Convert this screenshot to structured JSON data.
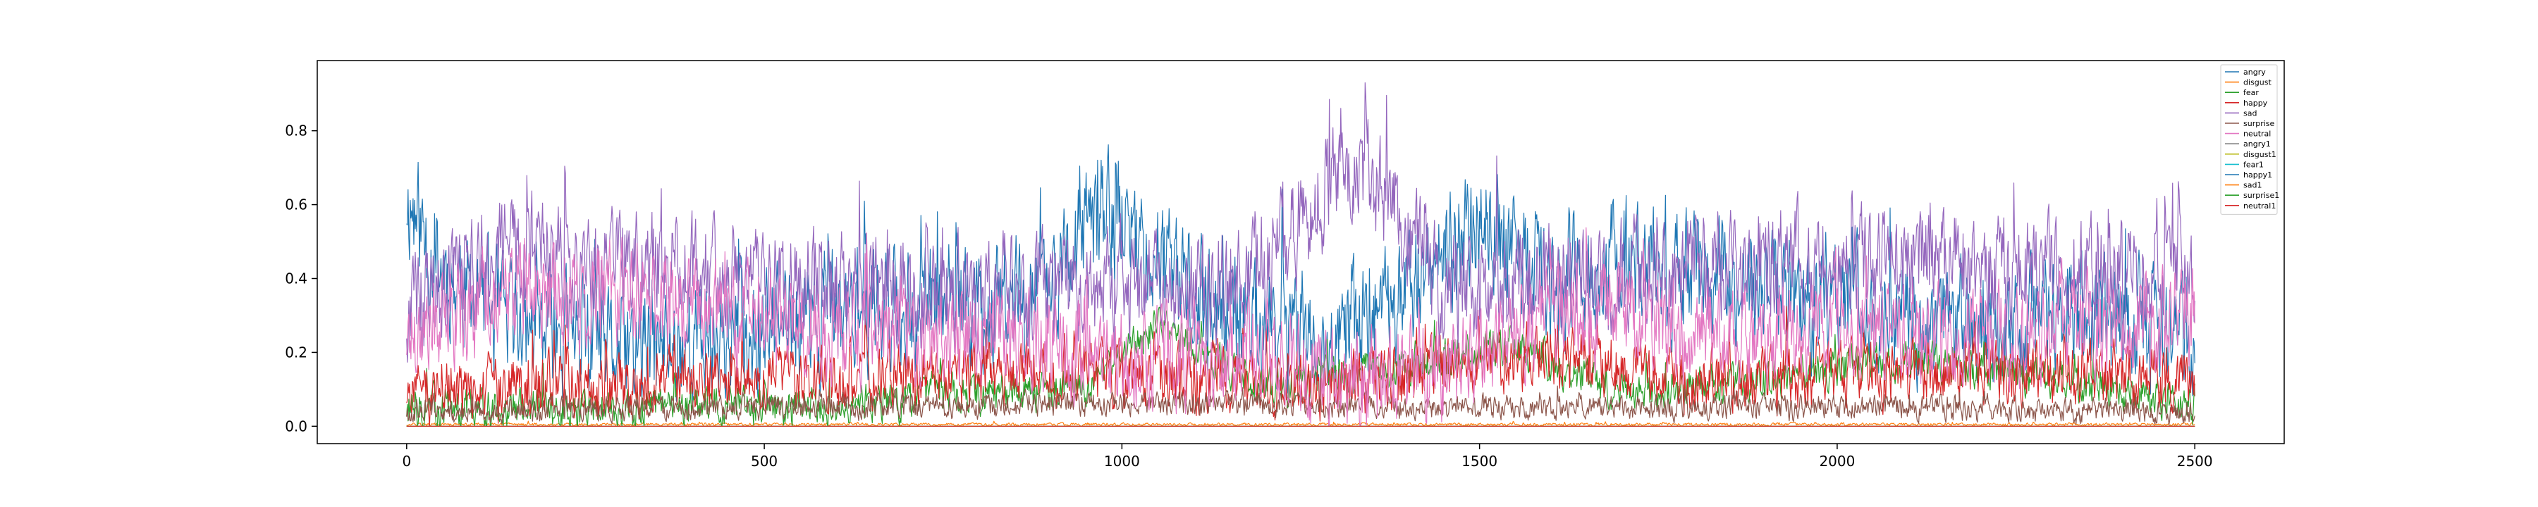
{
  "chart_data": {
    "type": "line",
    "title": "",
    "xlabel": "",
    "ylabel": "",
    "xlim": [
      -125,
      2625
    ],
    "ylim": [
      -0.047,
      0.99
    ],
    "xticks": [
      0,
      500,
      1000,
      1500,
      2000,
      2500
    ],
    "yticks": [
      0.0,
      0.2,
      0.4,
      0.6,
      0.8
    ],
    "xtick_labels": [
      "0",
      "500",
      "1000",
      "1500",
      "2000",
      "2500"
    ],
    "ytick_labels": [
      "0.0",
      "0.2",
      "0.4",
      "0.6",
      "0.8"
    ],
    "grid": false,
    "legend_position": "top-right",
    "n_points": 2501,
    "series": [
      {
        "name": "angry",
        "color": "#1f77b4",
        "anchors": [
          [
            0,
            0.62
          ],
          [
            40,
            0.45
          ],
          [
            120,
            0.3
          ],
          [
            300,
            0.2
          ],
          [
            450,
            0.25
          ],
          [
            600,
            0.3
          ],
          [
            700,
            0.33
          ],
          [
            800,
            0.3
          ],
          [
            900,
            0.4
          ],
          [
            980,
            0.58
          ],
          [
            1100,
            0.35
          ],
          [
            1300,
            0.2
          ],
          [
            1450,
            0.45
          ],
          [
            1500,
            0.55
          ],
          [
            1600,
            0.38
          ],
          [
            1700,
            0.45
          ],
          [
            1800,
            0.4
          ],
          [
            1900,
            0.35
          ],
          [
            2000,
            0.35
          ],
          [
            2100,
            0.3
          ],
          [
            2200,
            0.25
          ],
          [
            2300,
            0.3
          ],
          [
            2400,
            0.28
          ],
          [
            2500,
            0.25
          ]
        ],
        "noise": 0.25,
        "max": 0.78,
        "seed": 11
      },
      {
        "name": "disgust",
        "color": "#ff7f0e",
        "anchors": [
          [
            0,
            0.005
          ],
          [
            2500,
            0.005
          ]
        ],
        "noise": 0.006,
        "max": 0.03,
        "seed": 12
      },
      {
        "name": "fear",
        "color": "#2ca02c",
        "anchors": [
          [
            0,
            0.05
          ],
          [
            500,
            0.05
          ],
          [
            950,
            0.1
          ],
          [
            1050,
            0.28
          ],
          [
            1200,
            0.1
          ],
          [
            1550,
            0.22
          ],
          [
            1700,
            0.08
          ],
          [
            2100,
            0.18
          ],
          [
            2500,
            0.06
          ]
        ],
        "noise": 0.08,
        "max": 0.58,
        "seed": 13
      },
      {
        "name": "happy",
        "color": "#d62728",
        "anchors": [
          [
            0,
            0.1
          ],
          [
            500,
            0.12
          ],
          [
            950,
            0.15
          ],
          [
            1300,
            0.1
          ],
          [
            1600,
            0.2
          ],
          [
            1800,
            0.12
          ],
          [
            2250,
            0.15
          ],
          [
            2500,
            0.12
          ]
        ],
        "noise": 0.13,
        "max": 0.95,
        "seed": 14
      },
      {
        "name": "sad",
        "color": "#9467bd",
        "anchors": [
          [
            0,
            0.3
          ],
          [
            150,
            0.5
          ],
          [
            250,
            0.45
          ],
          [
            500,
            0.4
          ],
          [
            750,
            0.35
          ],
          [
            900,
            0.38
          ],
          [
            1100,
            0.35
          ],
          [
            1200,
            0.45
          ],
          [
            1320,
            0.72
          ],
          [
            1400,
            0.55
          ],
          [
            1450,
            0.35
          ],
          [
            1600,
            0.4
          ],
          [
            1800,
            0.42
          ],
          [
            1900,
            0.45
          ],
          [
            2100,
            0.45
          ],
          [
            2250,
            0.42
          ],
          [
            2400,
            0.42
          ],
          [
            2500,
            0.4
          ]
        ],
        "noise": 0.22,
        "max": 0.93,
        "seed": 15
      },
      {
        "name": "surprise",
        "color": "#8c564b",
        "anchors": [
          [
            0,
            0.04
          ],
          [
            500,
            0.05
          ],
          [
            1000,
            0.06
          ],
          [
            1500,
            0.05
          ],
          [
            2000,
            0.05
          ],
          [
            2500,
            0.04
          ]
        ],
        "noise": 0.05,
        "max": 0.22,
        "seed": 16
      },
      {
        "name": "neutral",
        "color": "#e377c2",
        "anchors": [
          [
            0,
            0.25
          ],
          [
            150,
            0.35
          ],
          [
            300,
            0.35
          ],
          [
            450,
            0.3
          ],
          [
            600,
            0.25
          ],
          [
            800,
            0.25
          ],
          [
            1000,
            0.18
          ],
          [
            1200,
            0.2
          ],
          [
            1300,
            0.12
          ],
          [
            1450,
            0.15
          ],
          [
            1600,
            0.3
          ],
          [
            1700,
            0.3
          ],
          [
            1800,
            0.25
          ],
          [
            1900,
            0.25
          ],
          [
            2000,
            0.28
          ],
          [
            2200,
            0.25
          ],
          [
            2500,
            0.3
          ]
        ],
        "noise": 0.2,
        "max": 0.92,
        "seed": 17
      },
      {
        "name": "angry1",
        "color": "#7f7f7f",
        "anchors": [
          [
            0,
            0.0
          ],
          [
            2500,
            0.0
          ]
        ],
        "noise": 0.0,
        "max": 0.0,
        "seed": 18
      },
      {
        "name": "disgust1",
        "color": "#bcbd22",
        "anchors": [
          [
            0,
            0.0
          ],
          [
            2500,
            0.0
          ]
        ],
        "noise": 0.0,
        "max": 0.0,
        "seed": 19
      },
      {
        "name": "fear1",
        "color": "#17becf",
        "anchors": [
          [
            0,
            0.0
          ],
          [
            2500,
            0.0
          ]
        ],
        "noise": 0.0,
        "max": 0.0,
        "seed": 20
      },
      {
        "name": "happy1",
        "color": "#1f77b4",
        "anchors": [
          [
            0,
            0.0
          ],
          [
            2500,
            0.0
          ]
        ],
        "noise": 0.0,
        "max": 0.0,
        "seed": 21
      },
      {
        "name": "sad1",
        "color": "#ff7f0e",
        "anchors": [
          [
            0,
            0.0
          ],
          [
            2500,
            0.0
          ]
        ],
        "noise": 0.0,
        "max": 0.0,
        "seed": 22
      },
      {
        "name": "surprise1",
        "color": "#2ca02c",
        "anchors": [
          [
            0,
            0.0
          ],
          [
            2500,
            0.0
          ]
        ],
        "noise": 0.0,
        "max": 0.0,
        "seed": 23
      },
      {
        "name": "neutral1",
        "color": "#d62728",
        "anchors": [
          [
            0,
            0.0
          ],
          [
            2500,
            0.0
          ]
        ],
        "noise": 0.0,
        "max": 0.0,
        "seed": 24
      }
    ]
  }
}
